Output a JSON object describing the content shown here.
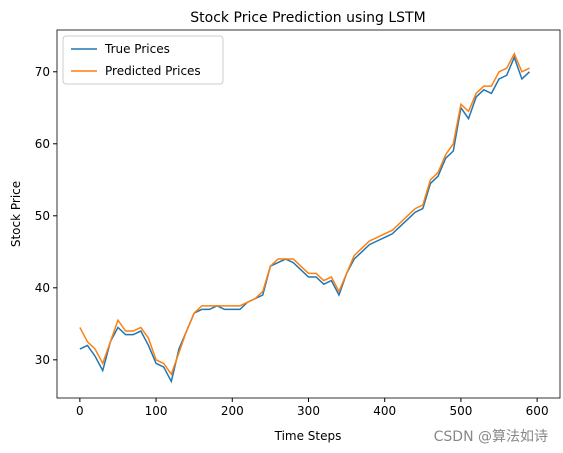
{
  "chart_data": {
    "type": "line",
    "title": "Stock Price Prediction using LSTM",
    "x_label": "Time Steps",
    "y_label": "Stock Price",
    "x": [
      0,
      10,
      20,
      30,
      40,
      50,
      60,
      70,
      80,
      90,
      100,
      110,
      120,
      130,
      140,
      150,
      160,
      170,
      180,
      190,
      200,
      210,
      220,
      230,
      240,
      250,
      260,
      270,
      280,
      290,
      300,
      310,
      320,
      330,
      340,
      350,
      360,
      370,
      380,
      390,
      400,
      410,
      420,
      430,
      440,
      450,
      460,
      470,
      480,
      490,
      500,
      510,
      520,
      530,
      540,
      550,
      560,
      570,
      580,
      590
    ],
    "series": [
      {
        "name": "True Prices",
        "color": "#1f77b4",
        "values": [
          31.5,
          32,
          30.5,
          28.5,
          32.5,
          34.5,
          33.5,
          33.5,
          34,
          32,
          29.5,
          29,
          27,
          31.5,
          34,
          36.5,
          37,
          37,
          37.5,
          37,
          37,
          37,
          38,
          38.5,
          39,
          43,
          43.5,
          44,
          43.5,
          42.5,
          41.5,
          41.5,
          40.5,
          41,
          39,
          42,
          44,
          45,
          46,
          46.5,
          47,
          47.5,
          48.5,
          49.5,
          50.5,
          51,
          54.5,
          55.5,
          58,
          59,
          65,
          63.5,
          66.5,
          67.5,
          67,
          69,
          69.5,
          72,
          69,
          70
        ]
      },
      {
        "name": "Predicted Prices",
        "color": "#ff7f0e",
        "values": [
          34.5,
          32.5,
          31.5,
          29.5,
          32.5,
          35.5,
          34,
          34,
          34.5,
          33,
          30,
          29.5,
          28,
          31,
          34,
          36.5,
          37.5,
          37.5,
          37.5,
          37.5,
          37.5,
          37.5,
          38,
          38.5,
          39.5,
          43,
          44,
          44,
          44,
          43,
          42,
          42,
          41,
          41.5,
          39.5,
          42,
          44.5,
          45.5,
          46.5,
          47,
          47.5,
          48,
          49,
          50,
          51,
          51.5,
          55,
          56,
          58.5,
          60,
          65.5,
          64.5,
          67,
          68,
          68,
          70,
          70.5,
          72.5,
          70,
          70.5
        ]
      }
    ],
    "xlim": [
      -30,
      630
    ],
    "ylim": [
      24.7,
      75.8
    ],
    "xticks": [
      0,
      100,
      200,
      300,
      400,
      500,
      600
    ],
    "yticks": [
      30,
      40,
      50,
      60,
      70
    ],
    "legend": "upper left",
    "watermark": "CSDN @算法如诗"
  }
}
